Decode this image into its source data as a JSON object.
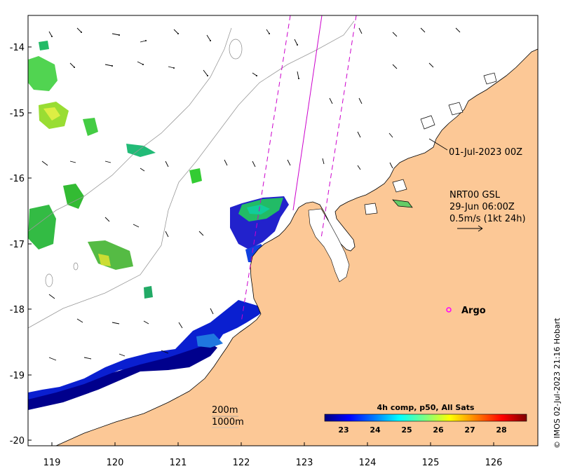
{
  "map": {
    "lon_range": [
      118.6,
      126.7
    ],
    "lat_range": [
      -20.1,
      -13.5
    ],
    "lon_ticks": [
      "119",
      "120",
      "121",
      "122",
      "123",
      "124",
      "125",
      "126"
    ],
    "lat_ticks": [
      "-14",
      "-15",
      "-16",
      "-17",
      "-18",
      "-19",
      "-20"
    ],
    "colors": {
      "land": "#fcc896",
      "coast": "#000000",
      "track": "#cc00cc",
      "isobath": "#999999",
      "argo": "#ff00ff"
    }
  },
  "annotations": {
    "pass_label": "01-Jul-2023 00Z",
    "product_line1": "NRT00 GSL",
    "product_line2": "29-Jun 06:00Z",
    "product_line3": "0.5m/s (1kt 24h)",
    "argo_label": "Argo",
    "isobath_200": "200m",
    "isobath_1000": "1000m"
  },
  "colorbar": {
    "title": "4h comp, p50, All Sats",
    "range": [
      22.2,
      29.0
    ],
    "ticks": [
      "23",
      "24",
      "25",
      "26",
      "27",
      "28"
    ],
    "stops": [
      "#00007f",
      "#0000ff",
      "#007fff",
      "#00ffff",
      "#7fff7f",
      "#ffff00",
      "#ff7f00",
      "#ff0000",
      "#7f0000"
    ]
  },
  "credit": "© IMOS 02-Jul-2023 21:16 Hobart"
}
